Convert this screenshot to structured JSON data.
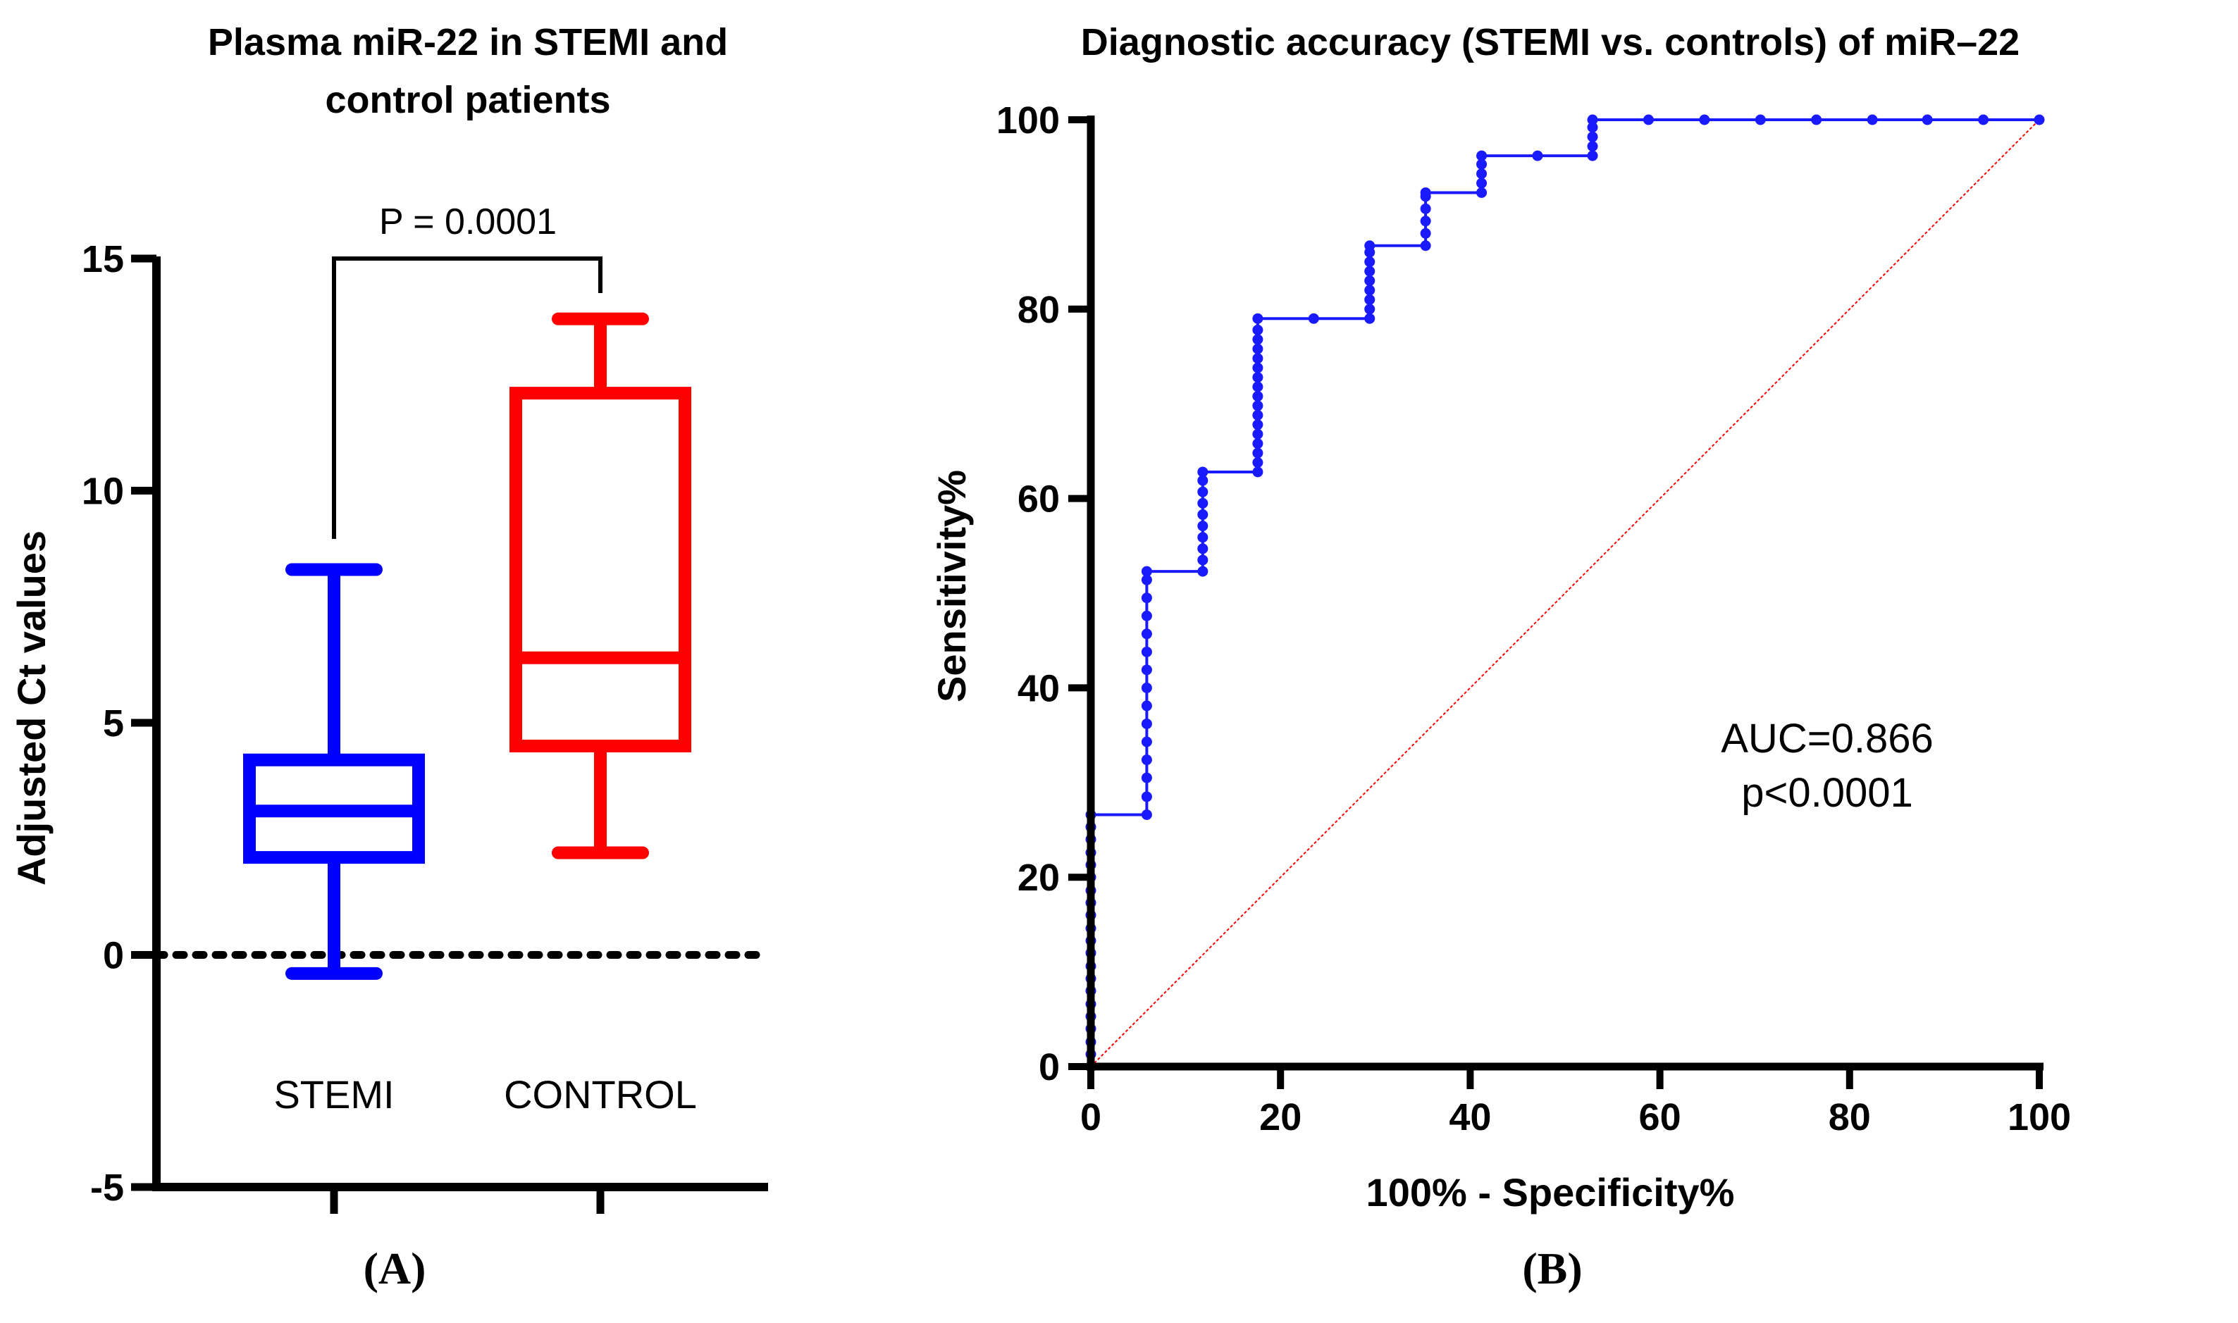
{
  "panel_a": {
    "title_line1": "Plasma miR-22 in STEMI and",
    "title_line2": "control patients",
    "ylabel": "Adjusted Ct values",
    "p_label": "P = 0.0001",
    "panel_label": "(A)"
  },
  "panel_b": {
    "title": "Diagnostic accuracy (STEMI vs. controls) of miR–22",
    "xlabel": "100% - Specificity%",
    "ylabel": "Sensitivity%",
    "auc_label": "AUC=0.866",
    "p_label": "p<0.0001",
    "panel_label": "(B)"
  },
  "colors": {
    "stemi": "#0000ff",
    "control": "#ff0000",
    "roc": "#1a1aff",
    "reference": "#ff0000",
    "axis": "#000000"
  },
  "chart_data": [
    {
      "type": "box",
      "title": "Plasma miR-22 in STEMI and control patients",
      "xlabel": "",
      "ylabel": "Adjusted Ct values",
      "ylim": [
        -5,
        15
      ],
      "yticks": [
        -5,
        0,
        5,
        10,
        15
      ],
      "ytick_labels": [
        "-5",
        "0",
        "5",
        "10",
        "15"
      ],
      "reference_line": {
        "y": 0,
        "style": "dotted"
      },
      "groups": [
        {
          "name": "STEMI",
          "color": "#0000ff",
          "min": -0.4,
          "q1": 2.1,
          "median": 3.1,
          "q3": 4.2,
          "max": 8.3
        },
        {
          "name": "CONTROL",
          "color": "#ff0000",
          "min": 2.2,
          "q1": 4.5,
          "median": 6.4,
          "q3": 12.1,
          "max": 13.7
        }
      ],
      "annotation": {
        "text": "P = 0.0001",
        "between": [
          "STEMI",
          "CONTROL"
        ]
      }
    },
    {
      "type": "line",
      "title": "Diagnostic accuracy (STEMI vs. controls) of miR–22",
      "xlabel": "100% - Specificity%",
      "ylabel": "Sensitivity%",
      "xlim": [
        0,
        100
      ],
      "ylim": [
        0,
        100
      ],
      "xticks": [
        0,
        20,
        40,
        60,
        80,
        100
      ],
      "yticks": [
        0,
        20,
        40,
        60,
        80,
        100
      ],
      "series": [
        {
          "name": "ROC",
          "x": [
            0,
            0,
            0,
            0,
            0,
            0,
            0,
            0,
            0,
            0,
            0,
            0,
            0,
            0,
            0,
            0,
            0,
            0,
            0,
            0,
            0,
            5.9,
            5.9,
            5.9,
            5.9,
            5.9,
            5.9,
            5.9,
            5.9,
            5.9,
            5.9,
            5.9,
            5.9,
            5.9,
            5.9,
            5.9,
            11.8,
            11.8,
            11.8,
            11.8,
            11.8,
            11.8,
            11.8,
            11.8,
            11.8,
            11.8,
            17.6,
            17.6,
            17.6,
            17.6,
            17.6,
            17.6,
            17.6,
            17.6,
            17.6,
            17.6,
            17.6,
            17.6,
            17.6,
            17.6,
            17.6,
            17.6,
            17.6,
            23.5,
            29.4,
            29.4,
            29.4,
            29.4,
            29.4,
            29.4,
            29.4,
            29.4,
            29.4,
            35.3,
            35.3,
            35.3,
            35.3,
            35.3,
            35.3,
            41.2,
            41.2,
            41.2,
            41.2,
            41.2,
            47.1,
            52.9,
            52.9,
            52.9,
            52.9,
            52.9,
            58.8,
            64.7,
            70.6,
            76.5,
            82.4,
            88.2,
            94.1,
            100
          ],
          "y": [
            0,
            1.3,
            2.6,
            4,
            5.3,
            6.6,
            8,
            9.3,
            10.6,
            12,
            13.3,
            14.6,
            16,
            17.3,
            18.6,
            20,
            21.3,
            22.6,
            24,
            25.3,
            26.6,
            26.6,
            28.5,
            30.5,
            32.4,
            34.3,
            36.2,
            38.1,
            40,
            41.9,
            43.8,
            45.7,
            47.6,
            49.5,
            51.4,
            52.3,
            52.3,
            53.5,
            54.7,
            55.9,
            57.1,
            58.3,
            59.5,
            60.7,
            61.9,
            62.8,
            62.8,
            63.8,
            64.8,
            65.8,
            66.8,
            67.8,
            68.8,
            69.8,
            70.8,
            71.8,
            72.8,
            73.8,
            74.8,
            75.8,
            76.8,
            77.8,
            79,
            79,
            79,
            80,
            81,
            82,
            83,
            84,
            85,
            86,
            86.7,
            86.7,
            88,
            89.3,
            90.6,
            91.9,
            92.3,
            92.3,
            93.3,
            94.3,
            95.3,
            96.2,
            96.2,
            96.2,
            97.2,
            98.2,
            99.2,
            100,
            100,
            100,
            100,
            100,
            100,
            100,
            100,
            100
          ]
        },
        {
          "name": "Reference",
          "x": [
            0,
            100
          ],
          "y": [
            0,
            100
          ]
        }
      ],
      "annotations": [
        "AUC=0.866",
        "p<0.0001"
      ]
    }
  ]
}
